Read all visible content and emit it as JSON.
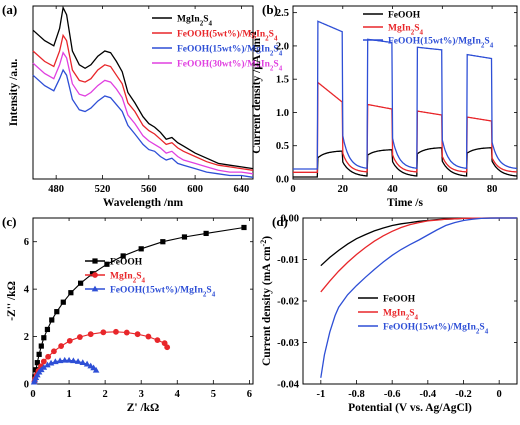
{
  "chart_data": [
    {
      "panel": "(a)",
      "type": "line",
      "xlabel": "Wavelength /nm",
      "ylabel": "Intensity /a.u.",
      "xlim": [
        460,
        650
      ],
      "ylim": [
        0,
        1
      ],
      "xticks": [
        480,
        520,
        560,
        600,
        640
      ],
      "yticks": [],
      "legend": "top-right",
      "series": [
        {
          "name": "MgIn2S4",
          "label_base": "MgIn",
          "label_sub1": "2",
          "label_mid": "S",
          "label_sub2": "4",
          "color": "#000000",
          "x": [
            460,
            470,
            478,
            483,
            486,
            489,
            494,
            500,
            505,
            510,
            516,
            522,
            527,
            532,
            537,
            542,
            548,
            555,
            560,
            565,
            570,
            575,
            580,
            585,
            590,
            600,
            610,
            620,
            630,
            640,
            650
          ],
          "y": [
            0.86,
            0.8,
            0.77,
            0.87,
            0.99,
            0.95,
            0.74,
            0.66,
            0.64,
            0.66,
            0.71,
            0.74,
            0.73,
            0.68,
            0.62,
            0.5,
            0.44,
            0.36,
            0.32,
            0.3,
            0.27,
            0.23,
            0.24,
            0.21,
            0.19,
            0.15,
            0.12,
            0.09,
            0.08,
            0.07,
            0.06
          ]
        },
        {
          "name": "FeOOH(5wt%)/MgIn2S4",
          "label_base": "FeOOH(5wt%)/MgIn",
          "label_sub1": "2",
          "label_mid": "S",
          "label_sub2": "4",
          "color": "#e8262a",
          "x": [
            460,
            470,
            478,
            483,
            486,
            489,
            494,
            500,
            505,
            510,
            516,
            522,
            527,
            532,
            537,
            542,
            548,
            555,
            560,
            565,
            570,
            575,
            580,
            585,
            590,
            600,
            610,
            620,
            630,
            640,
            650
          ],
          "y": [
            0.74,
            0.68,
            0.65,
            0.74,
            0.83,
            0.8,
            0.63,
            0.57,
            0.56,
            0.58,
            0.63,
            0.66,
            0.65,
            0.6,
            0.55,
            0.44,
            0.39,
            0.31,
            0.28,
            0.26,
            0.23,
            0.2,
            0.21,
            0.18,
            0.16,
            0.13,
            0.1,
            0.08,
            0.07,
            0.06,
            0.05
          ]
        },
        {
          "name": "FeOOH(15wt%)/MgIn2S4",
          "label_base": "FeOOH(15wt%)/MgIn",
          "label_sub1": "2",
          "label_mid": "S",
          "label_sub2": "4",
          "color": "#2e4fd6",
          "x": [
            460,
            470,
            478,
            483,
            486,
            489,
            494,
            500,
            505,
            510,
            516,
            522,
            527,
            532,
            537,
            542,
            548,
            555,
            560,
            565,
            570,
            575,
            580,
            585,
            590,
            600,
            610,
            620,
            630,
            640,
            650
          ],
          "y": [
            0.6,
            0.54,
            0.51,
            0.58,
            0.63,
            0.6,
            0.46,
            0.4,
            0.39,
            0.41,
            0.45,
            0.48,
            0.47,
            0.43,
            0.39,
            0.31,
            0.26,
            0.2,
            0.17,
            0.16,
            0.13,
            0.11,
            0.12,
            0.09,
            0.08,
            0.06,
            0.04,
            0.03,
            0.02,
            0.02,
            0.01
          ]
        },
        {
          "name": "FeOOH(30wt%)/MgIn2S4",
          "label_base": "FeOOH(30wt%)/MgIn",
          "label_sub1": "2",
          "label_mid": "S",
          "label_sub2": "4",
          "color": "#e040e0",
          "x": [
            460,
            470,
            478,
            483,
            486,
            489,
            494,
            500,
            505,
            510,
            516,
            522,
            527,
            532,
            537,
            542,
            548,
            555,
            560,
            565,
            570,
            575,
            580,
            585,
            590,
            600,
            610,
            620,
            630,
            640,
            650
          ],
          "y": [
            0.67,
            0.61,
            0.58,
            0.66,
            0.73,
            0.7,
            0.55,
            0.49,
            0.48,
            0.5,
            0.54,
            0.57,
            0.56,
            0.52,
            0.47,
            0.37,
            0.32,
            0.25,
            0.22,
            0.2,
            0.18,
            0.15,
            0.16,
            0.13,
            0.11,
            0.09,
            0.07,
            0.05,
            0.04,
            0.04,
            0.03
          ]
        }
      ]
    },
    {
      "panel": "(b)",
      "type": "line",
      "xlabel": "Time /s",
      "ylabel": "Current density /μA cm",
      "ylabel_sup": "-2",
      "xlim": [
        0,
        90
      ],
      "ylim": [
        0,
        2.6
      ],
      "xticks": [
        0,
        20,
        40,
        60,
        80
      ],
      "yticks": [
        0.0,
        0.5,
        1.0,
        1.5,
        2.0,
        2.5
      ],
      "legend": "top-right",
      "on_intervals": [
        [
          10,
          20
        ],
        [
          30,
          40
        ],
        [
          50,
          60
        ],
        [
          70,
          80
        ]
      ],
      "series": [
        {
          "name": "FeOOH",
          "label_base": "FeOOH",
          "label_sub1": "",
          "label_mid": "",
          "label_sub2": "",
          "color": "#000000",
          "off": 0.03,
          "on": [
            [
              0.32,
              0.42
            ],
            [
              0.36,
              0.44
            ],
            [
              0.38,
              0.47
            ],
            [
              0.39,
              0.47
            ]
          ],
          "decay": 0.08
        },
        {
          "name": "MgIn2S4",
          "label_base": "MgIn",
          "label_sub1": "2",
          "label_mid": "S",
          "label_sub2": "4",
          "color": "#e8262a",
          "off": 0.1,
          "on": [
            [
              1.45,
              1.15
            ],
            [
              1.12,
              1.05
            ],
            [
              1.02,
              0.96
            ],
            [
              0.93,
              0.87
            ]
          ],
          "decay": 0.3
        },
        {
          "name": "FeOOH(15wt%)/MgIn2S4",
          "label_base": "FeOOH(15wt%)/MgIn",
          "label_sub1": "2",
          "label_mid": "S",
          "label_sub2": "4",
          "color": "#2e4fd6",
          "off": 0.15,
          "on": [
            [
              2.37,
              2.21
            ],
            [
              2.1,
              2.05
            ],
            [
              1.98,
              1.94
            ],
            [
              1.87,
              1.81
            ]
          ],
          "decay": 0.35
        }
      ]
    },
    {
      "panel": "(c)",
      "type": "scatter",
      "xlabel": "Z' /kΩ",
      "ylabel": "-Z'' /kΩ",
      "xlim": [
        0,
        6.1
      ],
      "ylim": [
        0,
        7
      ],
      "xticks": [
        0,
        1,
        2,
        3,
        4,
        5,
        6
      ],
      "yticks": [
        0,
        2,
        4,
        6
      ],
      "legend": "center",
      "series": [
        {
          "name": "FeOOH",
          "label_base": "FeOOH",
          "label_sub1": "",
          "label_mid": "",
          "label_sub2": "",
          "color": "#000000",
          "marker": "square",
          "x": [
            0.05,
            0.08,
            0.12,
            0.17,
            0.23,
            0.3,
            0.4,
            0.52,
            0.66,
            0.84,
            1.05,
            1.32,
            1.65,
            2.05,
            2.5,
            3.0,
            3.6,
            4.2,
            4.8,
            5.85
          ],
          "y": [
            0.3,
            0.6,
            0.9,
            1.25,
            1.6,
            1.95,
            2.3,
            2.7,
            3.05,
            3.45,
            3.85,
            4.25,
            4.65,
            5.05,
            5.4,
            5.7,
            6.0,
            6.2,
            6.35,
            6.6
          ]
        },
        {
          "name": "MgIn2S4",
          "label_base": "MgIn",
          "label_sub1": "2",
          "label_mid": "S",
          "label_sub2": "4",
          "color": "#e8262a",
          "marker": "circle",
          "x": [
            0.04,
            0.06,
            0.1,
            0.15,
            0.22,
            0.3,
            0.42,
            0.58,
            0.78,
            1.02,
            1.3,
            1.6,
            1.95,
            2.3,
            2.6,
            2.9,
            3.2,
            3.45,
            3.65,
            3.72
          ],
          "y": [
            0.1,
            0.22,
            0.38,
            0.55,
            0.75,
            0.95,
            1.15,
            1.38,
            1.6,
            1.82,
            1.98,
            2.1,
            2.18,
            2.2,
            2.17,
            2.1,
            2.0,
            1.85,
            1.72,
            1.55
          ]
        },
        {
          "name": "FeOOH(15wt%)/MgIn2S4",
          "label_base": "FeOOH(15wt%)/MgIn",
          "label_sub1": "2",
          "label_mid": "S",
          "label_sub2": "4",
          "color": "#2e4fd6",
          "marker": "triangle",
          "x": [
            0.03,
            0.05,
            0.08,
            0.12,
            0.17,
            0.23,
            0.3,
            0.4,
            0.5,
            0.62,
            0.75,
            0.88,
            1.0,
            1.12,
            1.25,
            1.38,
            1.5,
            1.6,
            1.68,
            1.75
          ],
          "y": [
            0.08,
            0.17,
            0.27,
            0.38,
            0.5,
            0.6,
            0.7,
            0.8,
            0.88,
            0.94,
            0.98,
            1.0,
            1.0,
            0.98,
            0.95,
            0.9,
            0.84,
            0.76,
            0.68,
            0.58
          ]
        }
      ]
    },
    {
      "panel": "(d)",
      "type": "line",
      "xlabel": "Potential (V vs. Ag/AgCl)",
      "ylabel": "Current density (mA cm",
      "ylabel_sup": "-2",
      "ylabel_end": ")",
      "xlim": [
        -1.1,
        0.1
      ],
      "ylim": [
        -0.04,
        0
      ],
      "xticks": [
        -1.0,
        -0.8,
        -0.6,
        -0.4,
        -0.2,
        0.0
      ],
      "yticks": [
        -0.04,
        -0.03,
        -0.02,
        -0.01,
        0.0
      ],
      "legend": "center-right",
      "series": [
        {
          "name": "FeOOH",
          "label_base": "FeOOH",
          "label_sub1": "",
          "label_mid": "",
          "label_sub2": "",
          "color": "#000000",
          "x": [
            -1.0,
            -0.95,
            -0.9,
            -0.85,
            -0.8,
            -0.75,
            -0.7,
            -0.65,
            -0.6,
            -0.55,
            -0.5,
            -0.45,
            -0.4,
            -0.35,
            -0.3,
            -0.25,
            -0.2,
            -0.15,
            -0.1,
            -0.05,
            0.0,
            0.05,
            0.1
          ],
          "y": [
            -0.0115,
            -0.0095,
            -0.0078,
            -0.0063,
            -0.005,
            -0.004,
            -0.0031,
            -0.0024,
            -0.0018,
            -0.0014,
            -0.0011,
            -0.0008,
            -0.0006,
            -0.0004,
            -0.0003,
            -0.0002,
            -0.0001,
            -6e-05,
            -3e-05,
            -1e-05,
            0,
            0,
            0
          ]
        },
        {
          "name": "MgIn2S4",
          "label_base": "MgIn",
          "label_sub1": "2",
          "label_mid": "S",
          "label_sub2": "4",
          "color": "#e8262a",
          "x": [
            -1.0,
            -0.95,
            -0.9,
            -0.85,
            -0.8,
            -0.75,
            -0.7,
            -0.65,
            -0.6,
            -0.55,
            -0.5,
            -0.45,
            -0.4,
            -0.35,
            -0.3,
            -0.25,
            -0.2,
            -0.15,
            -0.1,
            -0.05,
            0.0,
            0.05,
            0.1
          ],
          "y": [
            -0.0178,
            -0.0152,
            -0.0128,
            -0.0107,
            -0.0088,
            -0.0071,
            -0.0056,
            -0.0043,
            -0.0032,
            -0.0023,
            -0.0016,
            -0.0011,
            -0.0007,
            -0.0005,
            -0.0003,
            -0.0002,
            -0.0001,
            -5e-05,
            -2e-05,
            0,
            0,
            0,
            0
          ]
        },
        {
          "name": "FeOOH(15wt%)/MgIn2S4",
          "label_base": "FeOOH(15wt%)/MgIn",
          "label_sub1": "2",
          "label_mid": "S",
          "label_sub2": "4",
          "color": "#2e4fd6",
          "x": [
            -1.0,
            -0.98,
            -0.95,
            -0.92,
            -0.9,
            -0.85,
            -0.8,
            -0.75,
            -0.7,
            -0.65,
            -0.6,
            -0.55,
            -0.5,
            -0.45,
            -0.4,
            -0.35,
            -0.3,
            -0.25,
            -0.2,
            -0.15,
            -0.1,
            -0.05,
            0.0,
            0.05,
            0.1
          ],
          "y": [
            -0.0385,
            -0.033,
            -0.0275,
            -0.0235,
            -0.0215,
            -0.0185,
            -0.0163,
            -0.0143,
            -0.0124,
            -0.0106,
            -0.009,
            -0.0076,
            -0.0064,
            -0.0053,
            -0.0041,
            -0.0029,
            -0.0018,
            -0.0011,
            -0.0006,
            -0.0003,
            -0.0001,
            -3e-05,
            0,
            0,
            0
          ]
        }
      ]
    }
  ]
}
